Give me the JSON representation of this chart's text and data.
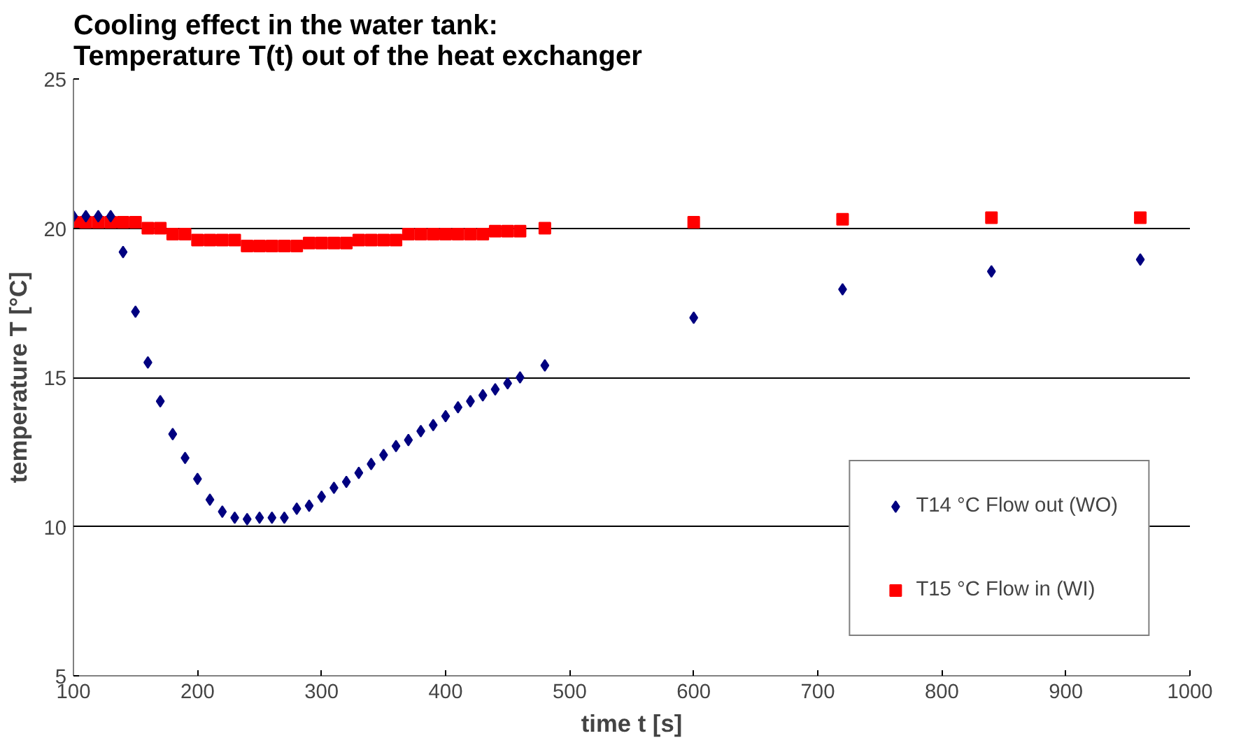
{
  "chart_data": {
    "type": "scatter",
    "title": "Cooling effect in the water tank:\nTemperature T(t) out of the heat exchanger",
    "xlabel": "time t [s]",
    "ylabel": "temperature T [°C]",
    "xlim": [
      100,
      1000
    ],
    "xticks": [
      100,
      200,
      300,
      400,
      500,
      600,
      700,
      800,
      900,
      1000
    ],
    "ylim": [
      5,
      25
    ],
    "yticks": [
      5,
      10,
      15,
      20,
      25
    ],
    "grid": "y",
    "legend": "right",
    "series": [
      {
        "name": "T14 °C Flow out (WO)",
        "color": "#000080",
        "marker": "diamond",
        "x": [
          100,
          110,
          120,
          130,
          140,
          150,
          160,
          170,
          180,
          190,
          200,
          210,
          220,
          230,
          240,
          250,
          260,
          270,
          280,
          290,
          300,
          310,
          320,
          330,
          340,
          350,
          360,
          370,
          380,
          390,
          400,
          410,
          420,
          430,
          440,
          450,
          460,
          480,
          600,
          720,
          840,
          960
        ],
        "values": [
          20.4,
          20.4,
          20.4,
          20.4,
          19.2,
          17.2,
          15.5,
          14.2,
          13.1,
          12.3,
          11.6,
          10.9,
          10.5,
          10.3,
          10.25,
          10.3,
          10.3,
          10.3,
          10.6,
          10.7,
          11.0,
          11.3,
          11.5,
          11.8,
          12.1,
          12.4,
          12.7,
          12.9,
          13.2,
          13.4,
          13.7,
          14.0,
          14.2,
          14.4,
          14.6,
          14.8,
          15.0,
          15.4,
          17.0,
          17.95,
          18.55,
          18.95
        ]
      },
      {
        "name": "T15 °C Flow in (WI)",
        "color": "#ff0000",
        "marker": "square",
        "x": [
          100,
          110,
          120,
          130,
          140,
          150,
          160,
          170,
          180,
          190,
          200,
          210,
          220,
          230,
          240,
          250,
          260,
          270,
          280,
          290,
          300,
          310,
          320,
          330,
          340,
          350,
          360,
          370,
          380,
          390,
          400,
          410,
          420,
          430,
          440,
          450,
          460,
          480,
          600,
          720,
          840,
          960
        ],
        "values": [
          20.2,
          20.2,
          20.2,
          20.2,
          20.2,
          20.2,
          20.0,
          20.0,
          19.8,
          19.8,
          19.6,
          19.6,
          19.6,
          19.6,
          19.4,
          19.4,
          19.4,
          19.4,
          19.4,
          19.5,
          19.5,
          19.5,
          19.5,
          19.6,
          19.6,
          19.6,
          19.6,
          19.8,
          19.8,
          19.8,
          19.8,
          19.8,
          19.8,
          19.8,
          19.9,
          19.9,
          19.9,
          20.0,
          20.2,
          20.3,
          20.35,
          20.35
        ]
      }
    ]
  }
}
